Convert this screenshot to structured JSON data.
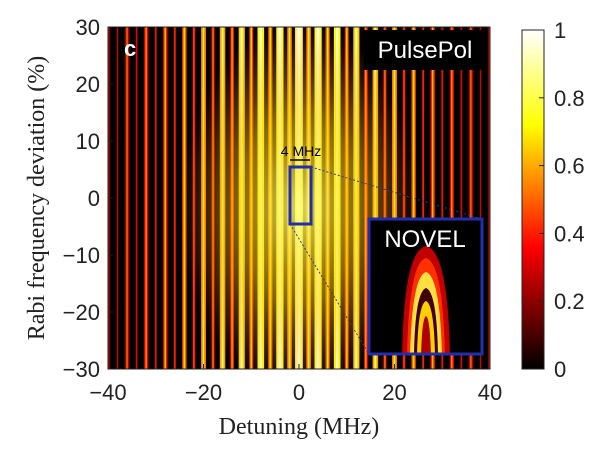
{
  "chart_data": {
    "type": "heatmap",
    "panel_label": "c",
    "title": "PulsePol",
    "xlabel": "Detuning (MHz)",
    "ylabel": "Rabi frequency deviation (%)",
    "xlim": [
      -40,
      40
    ],
    "ylim": [
      -30,
      30
    ],
    "xticks": [
      -40,
      -20,
      0,
      20,
      40
    ],
    "yticks": [
      -30,
      -20,
      -10,
      0,
      10,
      20,
      30
    ],
    "x_tick_labels": [
      "−40",
      "−20",
      "0",
      "20",
      "40"
    ],
    "y_tick_labels": [
      "−30",
      "−20",
      "−10",
      "0",
      "10",
      "20",
      "30"
    ],
    "colormap": "hot",
    "colorbar": {
      "range": [
        0,
        1
      ],
      "ticks": [
        0,
        0.2,
        0.4,
        0.6,
        0.8,
        1
      ],
      "tick_labels": [
        "0",
        "0.2",
        "0.4",
        "0.6",
        "0.8",
        "1"
      ]
    },
    "stripe_spacing_mhz": 4,
    "bright_region_center_mhz": 0,
    "annotations": {
      "width_label": "4 MHz",
      "highlight_box": {
        "x_range": [
          -2,
          2
        ],
        "y_range": [
          -5,
          5
        ],
        "color": "#1f2fb0"
      },
      "inset_label": "NOVEL",
      "inset_position": "bottom-right"
    }
  }
}
